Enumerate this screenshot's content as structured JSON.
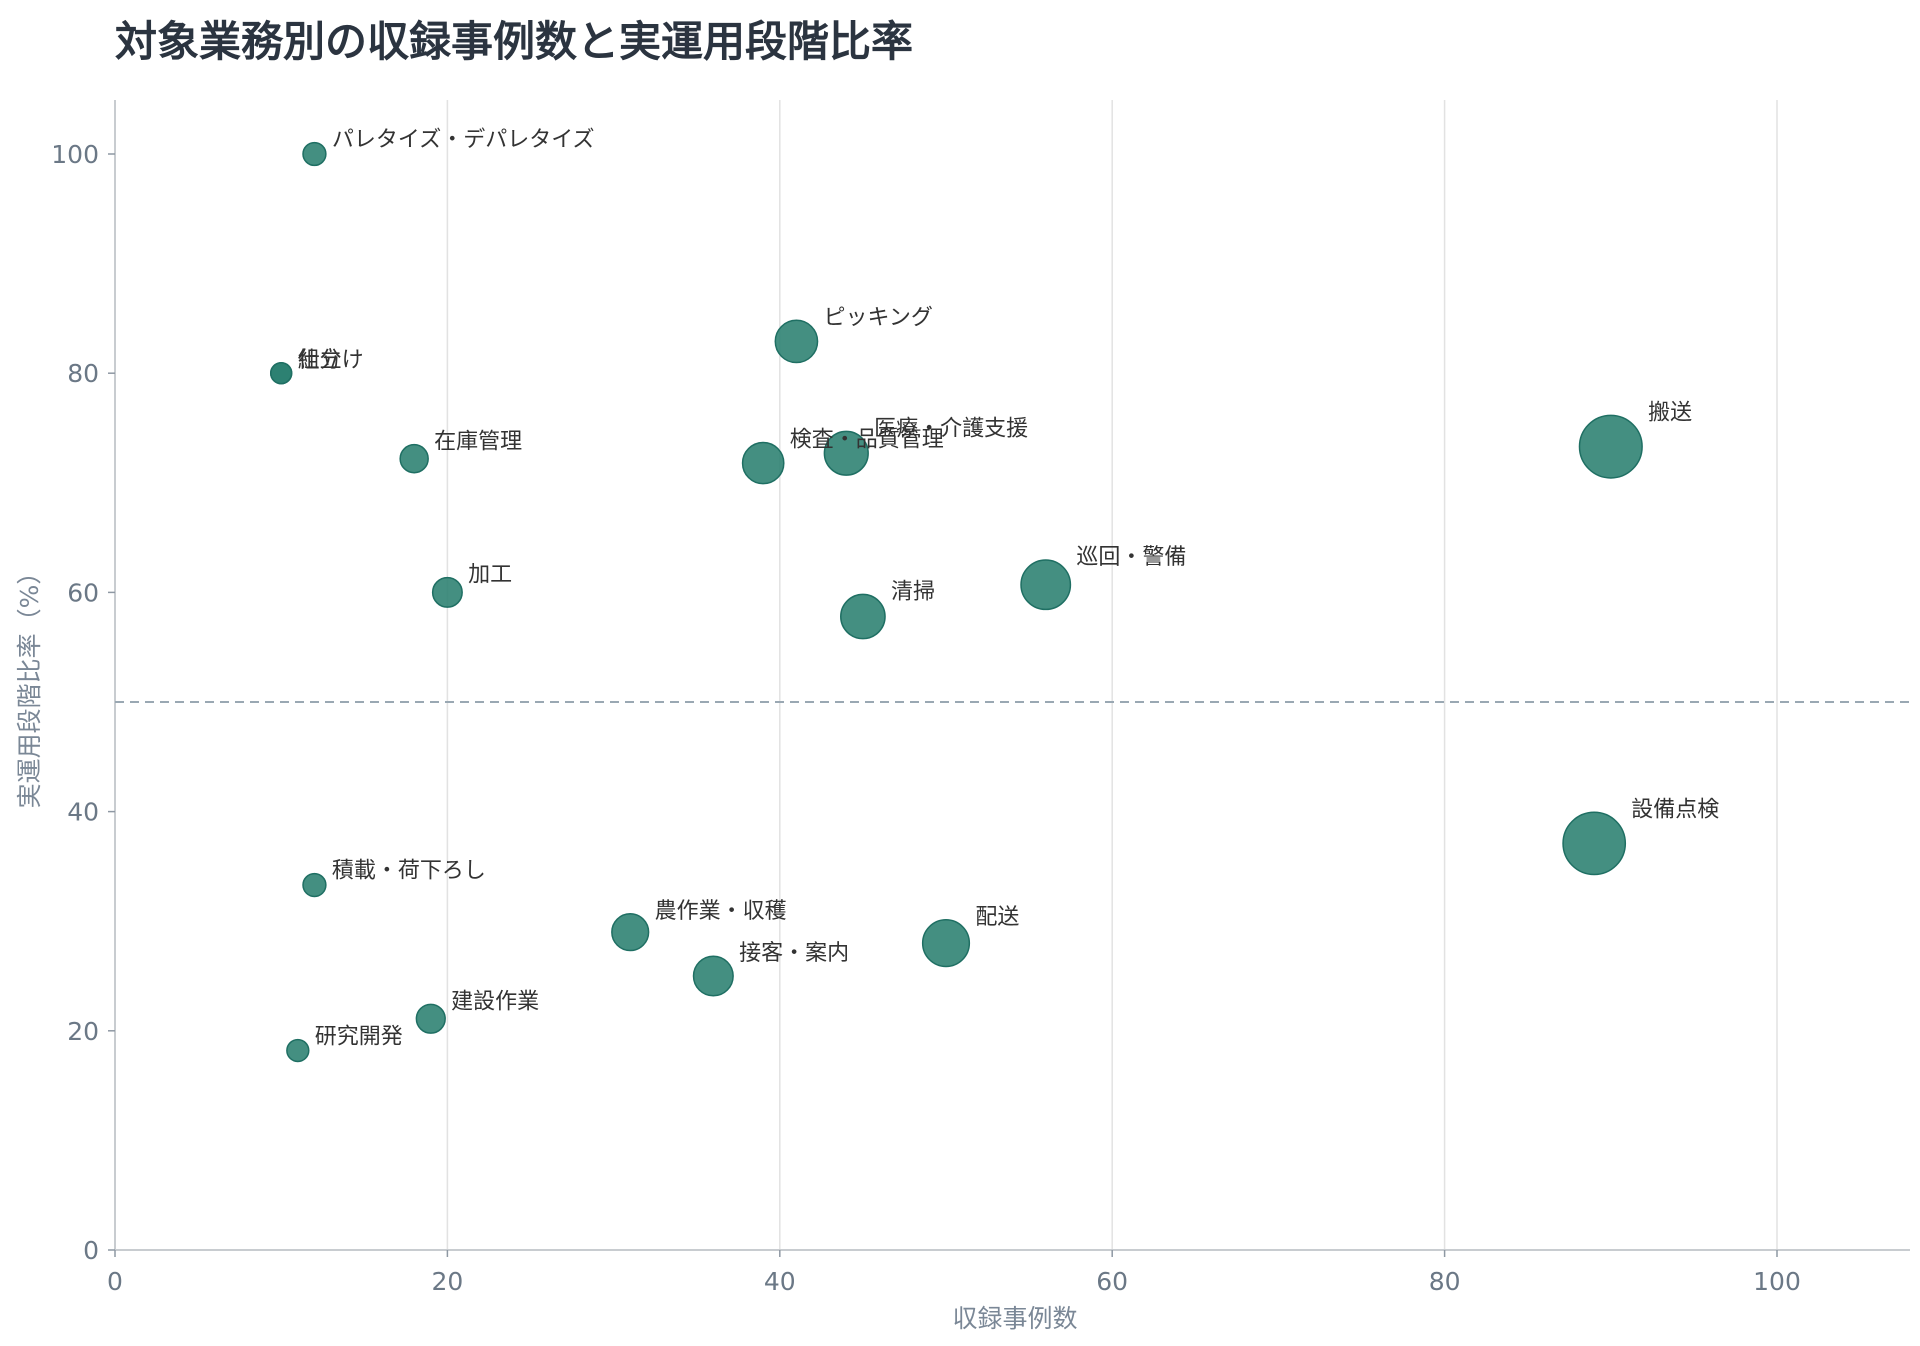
{
  "chart_data": {
    "type": "scatter",
    "title": "対象業務別の収録事例数と実運用段階比率",
    "xlabel": "収録事例数",
    "ylabel": "実運用段階比率（%）",
    "xlim": [
      0,
      108
    ],
    "ylim": [
      0,
      105
    ],
    "xticks": [
      0,
      20,
      40,
      60,
      80,
      100
    ],
    "yticks": [
      0,
      20,
      40,
      60,
      80,
      100
    ],
    "grid": "vertical",
    "reference_line": {
      "y": 50,
      "style": "dashed"
    },
    "marker_color": "#2a8070",
    "size_encoding": "収録事例数",
    "points": [
      {
        "label": "パレタイズ・デパレタイズ",
        "x": 12,
        "y": 100
      },
      {
        "label": "仕分け",
        "x": 10,
        "y": 80
      },
      {
        "label": "組立",
        "x": 10,
        "y": 80
      },
      {
        "label": "ピッキング",
        "x": 41,
        "y": 82.9
      },
      {
        "label": "在庫管理",
        "x": 18,
        "y": 72.2
      },
      {
        "label": "検査・品質管理",
        "x": 39,
        "y": 71.8
      },
      {
        "label": "医療・介護支援",
        "x": 44,
        "y": 72.7
      },
      {
        "label": "搬送",
        "x": 90,
        "y": 73.3
      },
      {
        "label": "加工",
        "x": 20,
        "y": 60
      },
      {
        "label": "清掃",
        "x": 45,
        "y": 57.8
      },
      {
        "label": "巡回・警備",
        "x": 56,
        "y": 60.7
      },
      {
        "label": "設備点検",
        "x": 89,
        "y": 37.1
      },
      {
        "label": "積載・荷下ろし",
        "x": 12,
        "y": 33.3
      },
      {
        "label": "農作業・収穫",
        "x": 31,
        "y": 29
      },
      {
        "label": "配送",
        "x": 50,
        "y": 28
      },
      {
        "label": "接客・案内",
        "x": 36,
        "y": 25
      },
      {
        "label": "建設作業",
        "x": 19,
        "y": 21.1
      },
      {
        "label": "研究開発",
        "x": 11,
        "y": 18.2
      }
    ]
  }
}
